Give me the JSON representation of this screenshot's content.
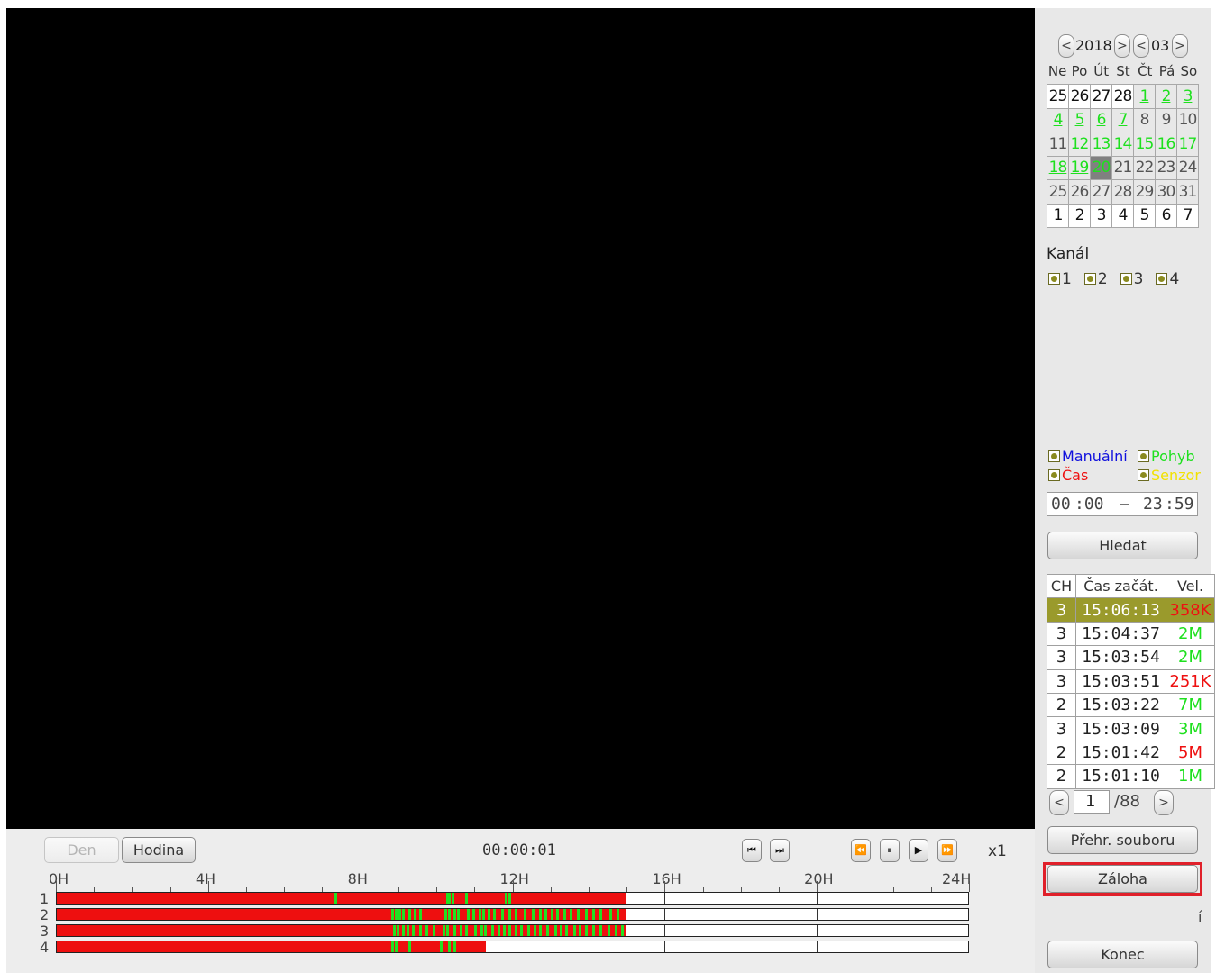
{
  "calendar": {
    "year": "2018",
    "month": "03",
    "prev_year": "<",
    "next_year": ">",
    "prev_month": "<",
    "next_month": ">",
    "weekdays": [
      "Ne",
      "Po",
      "Út",
      "St",
      "Čt",
      "Pá",
      "So"
    ],
    "weeks": [
      [
        "25",
        "26",
        "27",
        "28",
        "1",
        "2",
        "3"
      ],
      [
        "4",
        "5",
        "6",
        "7",
        "8",
        "9",
        "10"
      ],
      [
        "11",
        "12",
        "13",
        "14",
        "15",
        "16",
        "17"
      ],
      [
        "18",
        "19",
        "20",
        "21",
        "22",
        "23",
        "24"
      ],
      [
        "25",
        "26",
        "27",
        "28",
        "29",
        "30",
        "31"
      ],
      [
        "1",
        "2",
        "3",
        "4",
        "5",
        "6",
        "7"
      ]
    ],
    "recorded_days": [
      "1",
      "2",
      "3",
      "4",
      "5",
      "6",
      "7",
      "12",
      "13",
      "14",
      "15",
      "16",
      "17",
      "18",
      "19"
    ],
    "selected_day": "20"
  },
  "channels": {
    "label": "Kanál",
    "items": [
      "1",
      "2",
      "3",
      "4"
    ]
  },
  "record_types": {
    "manual": {
      "label": "Manuální",
      "color": "#1010dd"
    },
    "motion": {
      "label": "Pohyb",
      "color": "#1ee01e"
    },
    "time": {
      "label": "Čas",
      "color": "#ee1111"
    },
    "sensor": {
      "label": "Senzor",
      "color": "#f2e200"
    }
  },
  "time_range": {
    "start_h": "00",
    "start_m": ":00",
    "dash": "–",
    "end_h": "23",
    "end_m": ":59"
  },
  "search_button": "Hledat",
  "file_table": {
    "headers": [
      "CH",
      "Čas začát.",
      "Vel."
    ],
    "rows": [
      {
        "ch": "3",
        "time": "15:06:13",
        "size": "358K",
        "size_color": "red"
      },
      {
        "ch": "3",
        "time": "15:04:37",
        "size": "2M",
        "size_color": "green"
      },
      {
        "ch": "3",
        "time": "15:03:54",
        "size": "2M",
        "size_color": "green"
      },
      {
        "ch": "3",
        "time": "15:03:51",
        "size": "251K",
        "size_color": "red"
      },
      {
        "ch": "2",
        "time": "15:03:22",
        "size": "7M",
        "size_color": "green"
      },
      {
        "ch": "3",
        "time": "15:03:09",
        "size": "3M",
        "size_color": "green"
      },
      {
        "ch": "2",
        "time": "15:01:42",
        "size": "5M",
        "size_color": "red"
      },
      {
        "ch": "2",
        "time": "15:01:10",
        "size": "1M",
        "size_color": "green"
      }
    ]
  },
  "pagination": {
    "prev": "<",
    "current": "1",
    "total": "/88",
    "next": ">"
  },
  "buttons": {
    "file_playback": "Přehr. souboru",
    "backup": "Záloha",
    "exit": "Konec",
    "stray_char": "í"
  },
  "playback": {
    "day": "Den",
    "hour": "Hodina",
    "time": "00:00:01",
    "speed": "x1"
  },
  "timeline": {
    "hour_labels": [
      "0H",
      "4H",
      "8H",
      "12H",
      "16H",
      "20H",
      "24H"
    ],
    "channel_labels": [
      "1",
      "2",
      "3",
      "4"
    ],
    "tracks": [
      {
        "channel": "1",
        "recorded_until_h": 15.0,
        "motion_marks_h": [
          7.3,
          10.25,
          10.3,
          10.4,
          10.75,
          11.8,
          11.9
        ]
      },
      {
        "channel": "2",
        "recorded_until_h": 15.0,
        "motion_marks_h": [
          8.8,
          8.9,
          9.0,
          9.1,
          9.25,
          9.4,
          9.55,
          10.2,
          10.3,
          10.45,
          10.55,
          10.8,
          10.95,
          11.1,
          11.2,
          11.35,
          11.5,
          11.7,
          11.9,
          12.05,
          12.3,
          12.5,
          12.7,
          12.85,
          13.0,
          13.15,
          13.35,
          13.5,
          13.7,
          13.9,
          14.1,
          14.3,
          14.55,
          14.75
        ]
      },
      {
        "channel": "3",
        "recorded_until_h": 15.0,
        "motion_marks_h": [
          8.85,
          8.95,
          9.1,
          9.2,
          9.35,
          9.55,
          9.7,
          9.9,
          10.15,
          10.25,
          10.45,
          10.6,
          10.75,
          11.0,
          11.15,
          11.25,
          11.45,
          11.6,
          11.75,
          11.9,
          12.05,
          12.2,
          12.4,
          12.55,
          12.7,
          12.9,
          13.1,
          13.25,
          13.4,
          13.6,
          13.75,
          13.9,
          14.1,
          14.3,
          14.5,
          14.7,
          14.85
        ]
      },
      {
        "channel": "4",
        "recorded_until_h": 11.3,
        "motion_marks_h": [
          8.8,
          8.9,
          9.25,
          10.1,
          10.3,
          10.45
        ]
      }
    ]
  }
}
